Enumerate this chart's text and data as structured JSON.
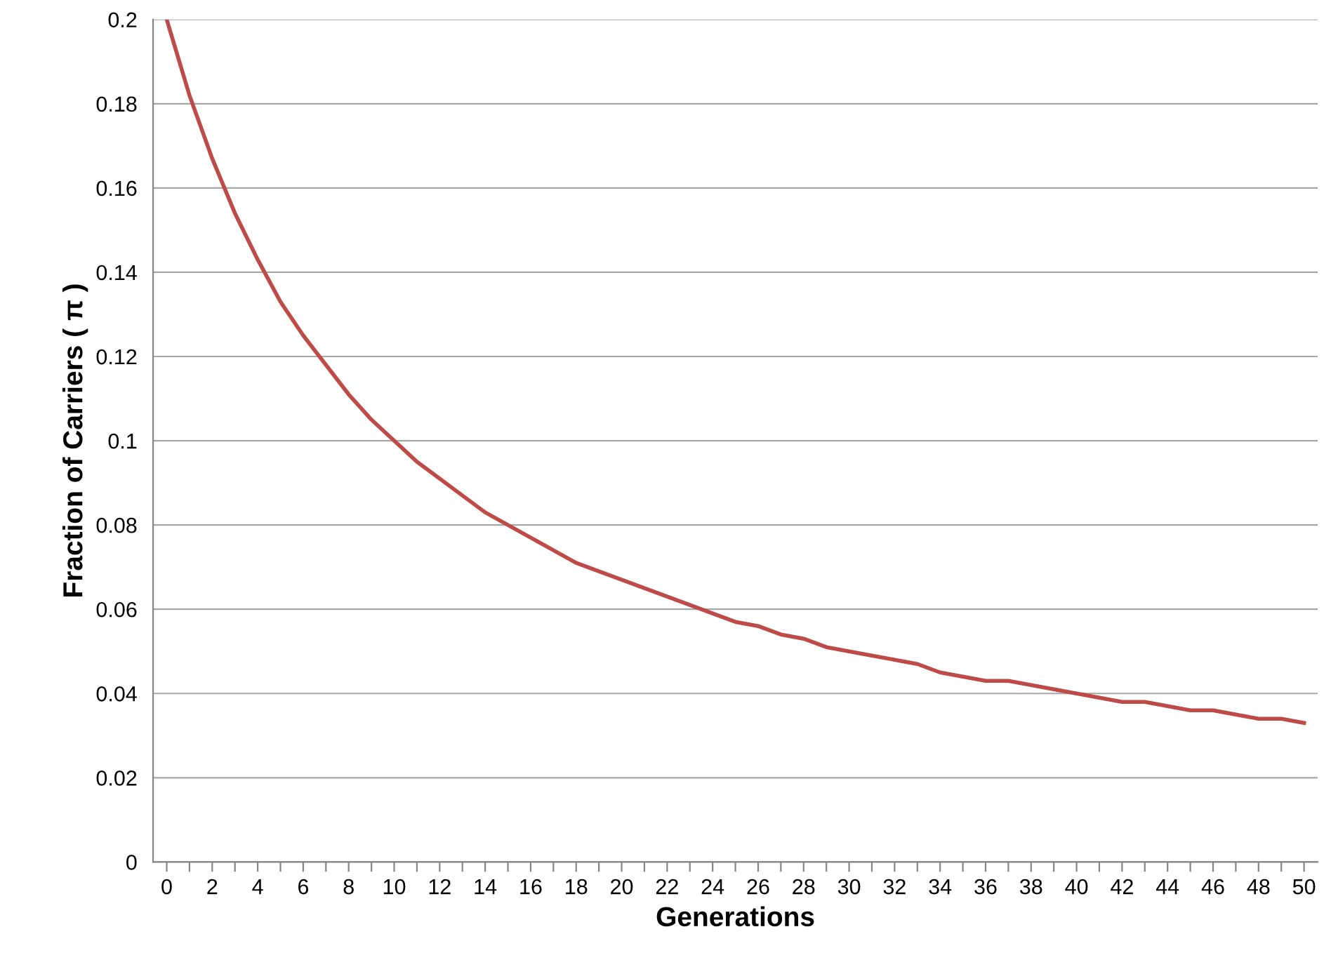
{
  "chart_data": {
    "type": "line",
    "xlabel": "Generations",
    "ylabel": "Fraction of Carriers ( π )",
    "x": [
      0,
      1,
      2,
      3,
      4,
      5,
      6,
      7,
      8,
      9,
      10,
      11,
      12,
      13,
      14,
      15,
      16,
      17,
      18,
      19,
      20,
      21,
      22,
      23,
      24,
      25,
      26,
      27,
      28,
      29,
      30,
      31,
      32,
      33,
      34,
      35,
      36,
      37,
      38,
      39,
      40,
      41,
      42,
      43,
      44,
      45,
      46,
      47,
      48,
      49,
      50
    ],
    "series": [
      {
        "color": "#be4b48",
        "values": [
          0.2,
          0.182,
          0.167,
          0.154,
          0.143,
          0.133,
          0.125,
          0.118,
          0.111,
          0.105,
          0.1,
          0.095,
          0.091,
          0.087,
          0.083,
          0.08,
          0.077,
          0.074,
          0.071,
          0.069,
          0.067,
          0.065,
          0.063,
          0.061,
          0.059,
          0.057,
          0.056,
          0.054,
          0.053,
          0.051,
          0.05,
          0.049,
          0.048,
          0.047,
          0.045,
          0.044,
          0.043,
          0.043,
          0.042,
          0.041,
          0.04,
          0.039,
          0.038,
          0.038,
          0.037,
          0.036,
          0.036,
          0.035,
          0.034,
          0.034,
          0.033
        ]
      }
    ],
    "xlim": [
      -0.6,
      50.6
    ],
    "xticks": [
      0,
      {
        "value": 1,
        "label": null
      },
      2,
      {
        "value": 3,
        "label": null
      },
      4,
      {
        "value": 5,
        "label": null
      },
      6,
      {
        "value": 7,
        "label": null
      },
      8,
      {
        "value": 9,
        "label": null
      },
      10,
      {
        "value": 11,
        "label": null
      },
      12,
      {
        "value": 13,
        "label": null
      },
      14,
      {
        "value": 15,
        "label": null
      },
      16,
      {
        "value": 17,
        "label": null
      },
      18,
      {
        "value": 19,
        "label": null
      },
      20,
      {
        "value": 21,
        "label": null
      },
      22,
      {
        "value": 23,
        "label": null
      },
      24,
      {
        "value": 25,
        "label": null
      },
      26,
      {
        "value": 27,
        "label": null
      },
      28,
      {
        "value": 29,
        "label": null
      },
      30,
      {
        "value": 31,
        "label": null
      },
      32,
      {
        "value": 33,
        "label": null
      },
      34,
      {
        "value": 35,
        "label": null
      },
      36,
      {
        "value": 37,
        "label": null
      },
      38,
      {
        "value": 39,
        "label": null
      },
      40,
      {
        "value": 41,
        "label": null
      },
      42,
      {
        "value": 43,
        "label": null
      },
      44,
      {
        "value": 45,
        "label": null
      },
      46,
      {
        "value": 47,
        "label": null
      },
      48,
      {
        "value": 49,
        "label": null
      },
      50
    ],
    "ylim": [
      0,
      0.2
    ],
    "yticks": [
      0,
      0.02,
      0.04,
      0.06,
      0.08,
      0.1,
      0.12,
      0.14,
      0.16,
      0.18,
      0.2
    ],
    "grid": "y",
    "marker": "none",
    "line_style": "solid"
  }
}
